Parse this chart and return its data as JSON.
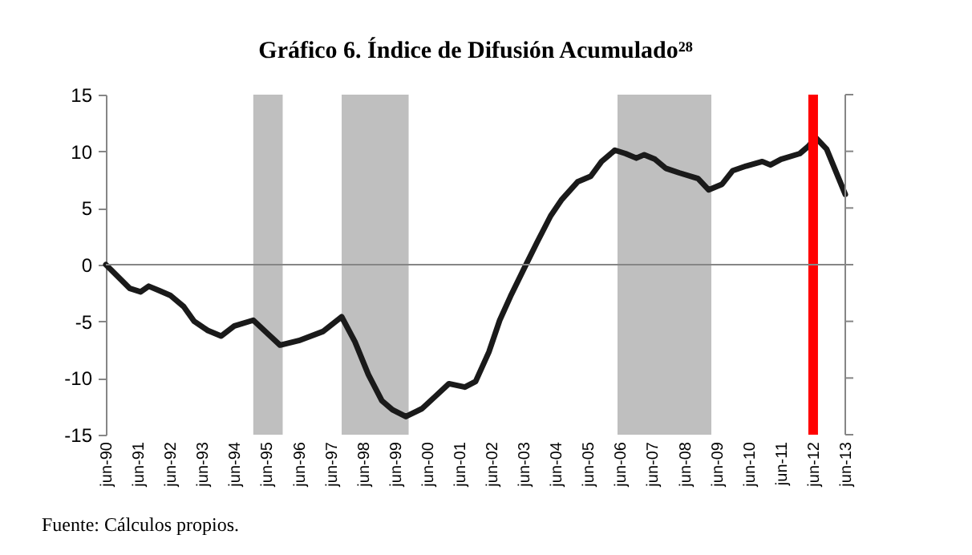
{
  "chart_data": {
    "type": "line",
    "title": "Gráfico 6. Índice de Difusión Acumulado²⁸",
    "x": [
      "1990-06",
      "1991-03",
      "1991-07",
      "1991-10",
      "1992-02",
      "1992-06",
      "1992-11",
      "1993-03",
      "1993-08",
      "1994-01",
      "1994-06",
      "1995-01",
      "1995-06",
      "1995-11",
      "1996-06",
      "1997-03",
      "1997-10",
      "1998-03",
      "1998-08",
      "1999-01",
      "1999-05",
      "1999-10",
      "2000-04",
      "2000-09",
      "2001-02",
      "2001-08",
      "2001-12",
      "2002-05",
      "2002-09",
      "2003-01",
      "2003-06",
      "2003-11",
      "2004-04",
      "2004-08",
      "2005-02",
      "2005-07",
      "2005-11",
      "2006-04",
      "2006-08",
      "2006-12",
      "2007-03",
      "2007-07",
      "2007-11",
      "2008-04",
      "2008-11",
      "2009-03",
      "2009-08",
      "2009-12",
      "2010-05",
      "2010-11",
      "2011-02",
      "2011-06",
      "2012-01",
      "2012-04",
      "2012-07",
      "2012-11",
      "2013-06"
    ],
    "series": [
      {
        "color": "#1a1a1a",
        "values": [
          0,
          -2.1,
          -2.4,
          -1.9,
          -2.3,
          -2.7,
          -3.7,
          -5.0,
          -5.8,
          -6.3,
          -5.4,
          -4.9,
          -6.0,
          -7.1,
          -6.7,
          -5.9,
          -4.6,
          -6.8,
          -9.7,
          -12.0,
          -12.8,
          -13.4,
          -12.7,
          -11.6,
          -10.5,
          -10.8,
          -10.3,
          -7.7,
          -4.9,
          -2.8,
          -0.4,
          2.0,
          4.3,
          5.7,
          7.3,
          7.8,
          9.1,
          10.1,
          9.8,
          9.4,
          9.7,
          9.3,
          8.5,
          8.1,
          7.6,
          6.6,
          7.1,
          8.3,
          8.7,
          9.1,
          8.8,
          9.3,
          9.8,
          10.4,
          11.2,
          10.2,
          6.2
        ]
      }
    ],
    "xlim": [
      "1990-06",
      "2013-06"
    ],
    "xticks": [
      {
        "value": "1990-06",
        "label": "jun-90"
      },
      {
        "value": "1991-06",
        "label": "jun-91"
      },
      {
        "value": "1992-06",
        "label": "jun-92"
      },
      {
        "value": "1993-06",
        "label": "jun-93"
      },
      {
        "value": "1994-06",
        "label": "jun-94"
      },
      {
        "value": "1995-06",
        "label": "jun-95"
      },
      {
        "value": "1996-06",
        "label": "jun-96"
      },
      {
        "value": "1997-06",
        "label": "jun-97"
      },
      {
        "value": "1998-06",
        "label": "jun-98"
      },
      {
        "value": "1999-06",
        "label": "jun-99"
      },
      {
        "value": "2000-06",
        "label": "jun-00"
      },
      {
        "value": "2001-06",
        "label": "jun-01"
      },
      {
        "value": "2002-06",
        "label": "jun-02"
      },
      {
        "value": "2003-06",
        "label": "jun-03"
      },
      {
        "value": "2004-06",
        "label": "jun-04"
      },
      {
        "value": "2005-06",
        "label": "jun-05"
      },
      {
        "value": "2006-06",
        "label": "jun-06"
      },
      {
        "value": "2007-06",
        "label": "jun-07"
      },
      {
        "value": "2008-06",
        "label": "jun-08"
      },
      {
        "value": "2009-06",
        "label": "jun-09"
      },
      {
        "value": "2010-06",
        "label": "jun-10"
      },
      {
        "value": "2011-06",
        "label": "jun-11"
      },
      {
        "value": "2012-06",
        "label": "jun-12"
      },
      {
        "value": "2013-06",
        "label": "jun-13"
      }
    ],
    "ylim": [
      -15,
      15
    ],
    "yticks": [
      -15,
      -10,
      -5,
      0,
      5,
      10,
      15
    ],
    "bands": [
      {
        "axis": "x",
        "from": "1995-01",
        "to": "1995-12",
        "color": "#bfbfbf"
      },
      {
        "axis": "x",
        "from": "1997-10",
        "to": "1999-11",
        "color": "#bfbfbf"
      },
      {
        "axis": "x",
        "from": "2006-05",
        "to": "2009-04",
        "color": "#bfbfbf"
      }
    ],
    "ref_lines": [
      {
        "axis": "x",
        "value": "2012-06",
        "color": "#ff0000"
      }
    ],
    "grid": false,
    "legend": false,
    "marker": "none",
    "line_style": "solid",
    "annotations": [
      "Fuente: Cálculos propios."
    ]
  }
}
